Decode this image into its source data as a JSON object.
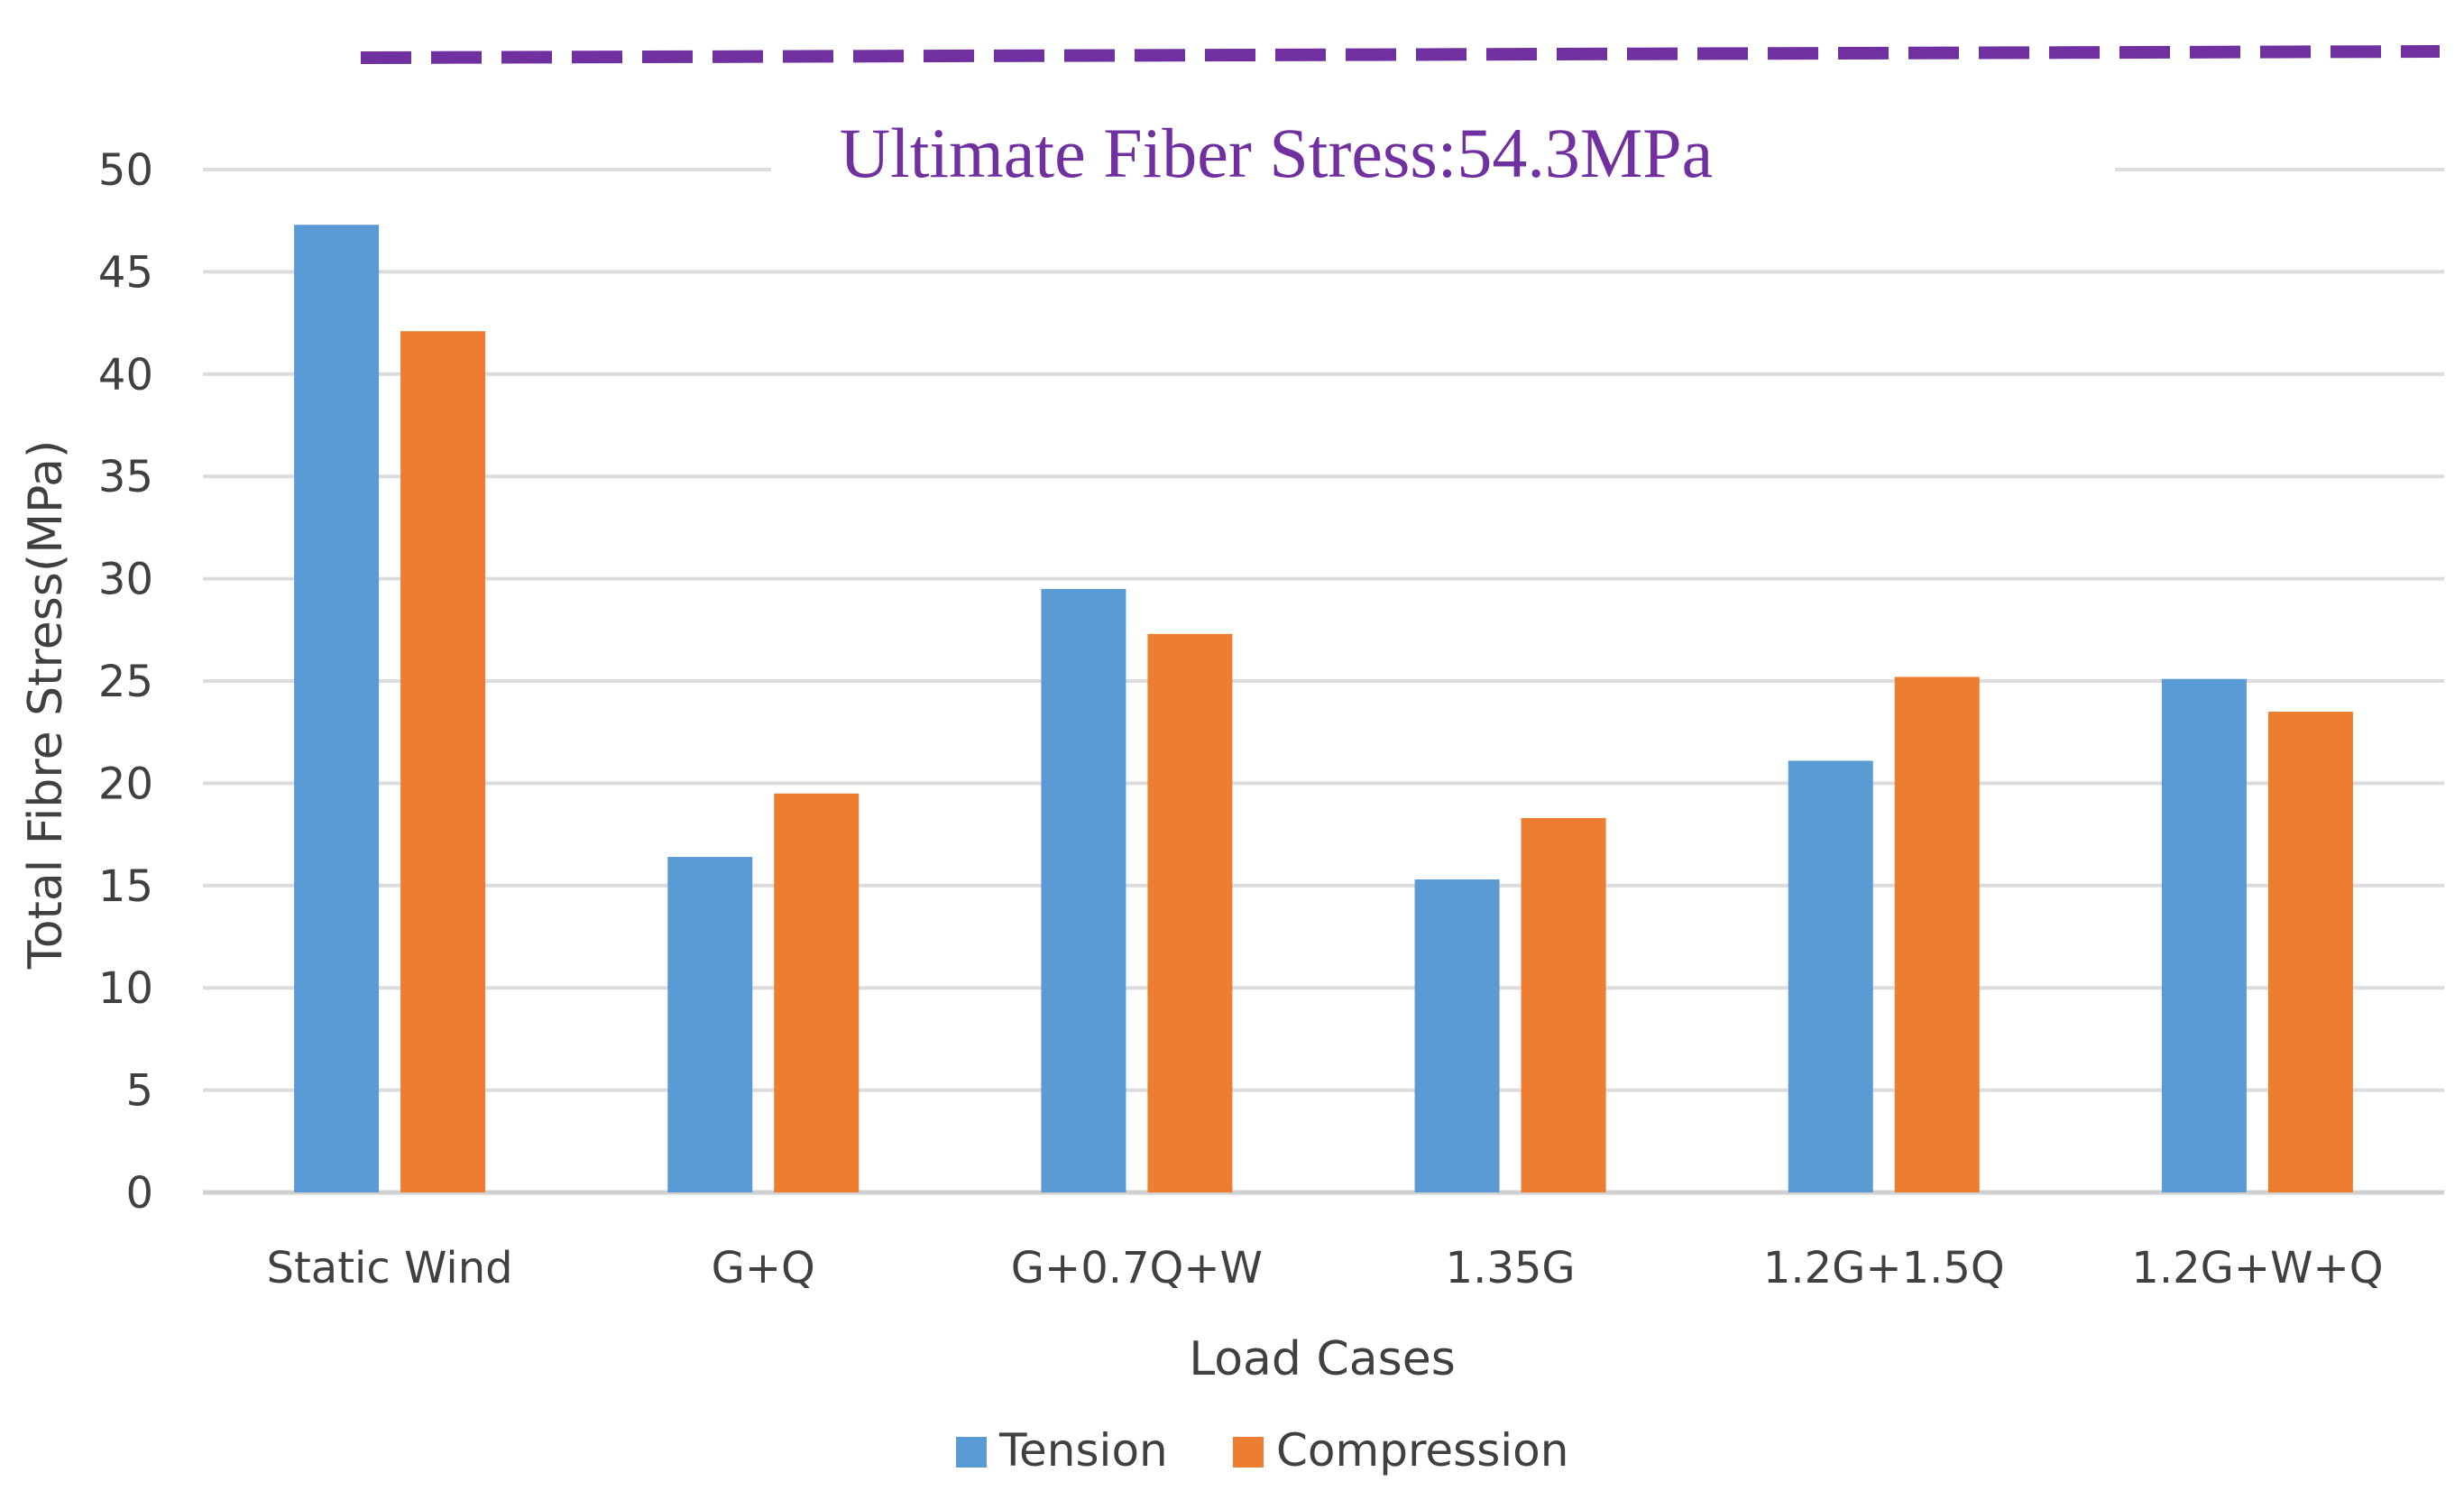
{
  "chart_data": {
    "type": "bar",
    "title": "",
    "xlabel": "Load Cases",
    "ylabel": "Total Fibre Stress(MPa)",
    "ylim": [
      0,
      50
    ],
    "yticks": [
      0,
      5,
      10,
      15,
      20,
      25,
      30,
      35,
      40,
      45,
      50
    ],
    "grid": true,
    "categories": [
      "Static Wind",
      "G+Q",
      "G+0.7Q+W",
      "1.35G",
      "1.2G+1.5Q",
      "1.2G+W+Q"
    ],
    "series": [
      {
        "name": "Tension",
        "color": "#5b9bd5",
        "values": [
          47.3,
          16.4,
          29.5,
          15.3,
          21.1,
          25.1
        ]
      },
      {
        "name": "Compression",
        "color": "#ed7d31",
        "values": [
          42.1,
          19.5,
          27.3,
          18.3,
          25.2,
          23.5
        ]
      }
    ],
    "reference_line": {
      "label": "Ultimate Fiber Stress:54.3MPa",
      "value": 54.3,
      "color": "#7030a0",
      "style": "dashed"
    },
    "legend_position": "bottom-center"
  }
}
